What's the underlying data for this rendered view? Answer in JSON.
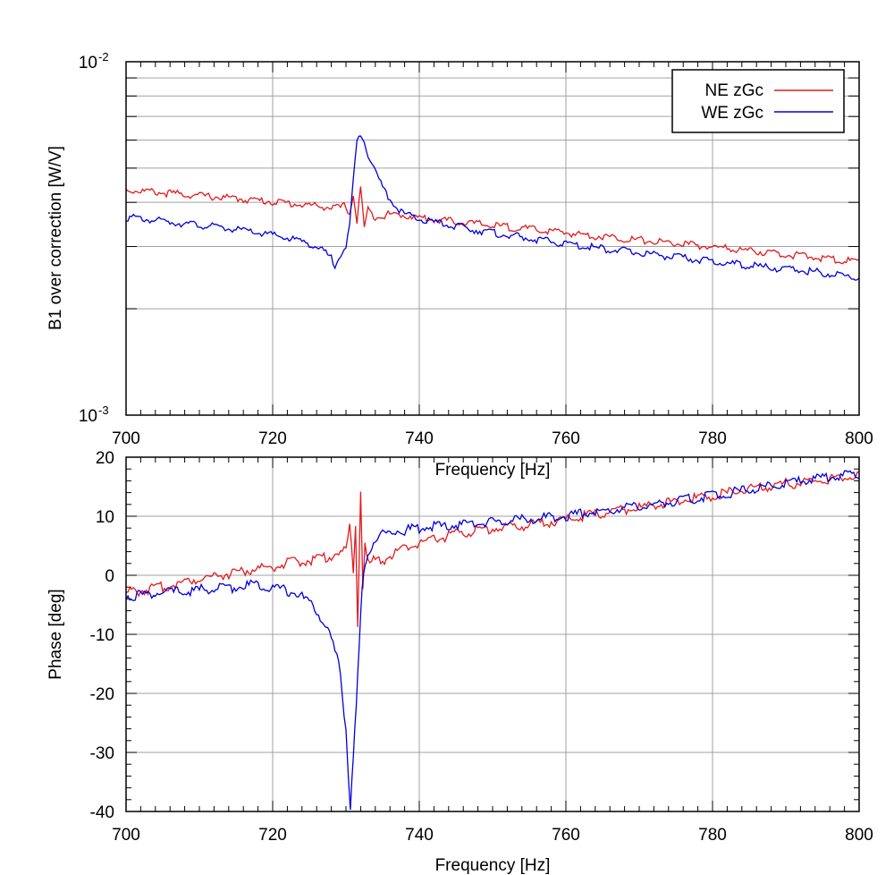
{
  "chart_data": [
    {
      "type": "line",
      "title": "",
      "ylabel": "B1 over correction [W/V]",
      "xlabel": "Frequency [Hz]",
      "xlim": [
        700,
        800
      ],
      "ylim": [
        0.001,
        0.01
      ],
      "yscale": "log",
      "xticks": [
        "700",
        "720",
        "740",
        "760",
        "780",
        "800"
      ],
      "yticks": [
        {
          "base": "10",
          "exp": "-3",
          "value": 0.001
        },
        {
          "base": "10",
          "exp": "-2",
          "value": 0.01
        }
      ],
      "grid": true,
      "legend_position": "top-right",
      "series": [
        {
          "name": "NE zGc",
          "color": "#e41a1c",
          "x": [
            700,
            705,
            710,
            715,
            720,
            724,
            727,
            729,
            730,
            730.5,
            731,
            731.5,
            732,
            732.5,
            733,
            734,
            736,
            738,
            740,
            745,
            750,
            755,
            760,
            765,
            770,
            775,
            780,
            785,
            790,
            795,
            800
          ],
          "y": [
            0.00434,
            0.00426,
            0.00418,
            0.0041,
            0.00402,
            0.00394,
            0.00389,
            0.00385,
            0.00392,
            0.0037,
            0.0042,
            0.0035,
            0.0044,
            0.0034,
            0.0038,
            0.00365,
            0.0037,
            0.00368,
            0.00362,
            0.00353,
            0.00344,
            0.00336,
            0.00328,
            0.0032,
            0.00313,
            0.00306,
            0.00299,
            0.00292,
            0.00285,
            0.00278,
            0.00271
          ]
        },
        {
          "name": "WE zGc",
          "color": "#0000dd",
          "x": [
            700,
            705,
            710,
            715,
            720,
            723,
            725,
            726,
            727,
            728,
            728.5,
            729,
            730,
            730.5,
            731,
            731.5,
            732,
            732.5,
            733,
            734,
            735,
            736,
            737,
            738,
            740,
            745,
            750,
            755,
            760,
            765,
            770,
            775,
            780,
            785,
            790,
            795,
            800
          ],
          "y": [
            0.00363,
            0.00354,
            0.00345,
            0.00335,
            0.00323,
            0.00314,
            0.00306,
            0.00298,
            0.0029,
            0.00278,
            0.00265,
            0.00282,
            0.003,
            0.0034,
            0.0046,
            0.0059,
            0.0063,
            0.006,
            0.0055,
            0.0049,
            0.0044,
            0.0041,
            0.00385,
            0.0037,
            0.00358,
            0.00342,
            0.00328,
            0.00316,
            0.00305,
            0.00296,
            0.00288,
            0.0028,
            0.00272,
            0.00265,
            0.00259,
            0.00253,
            0.00245
          ]
        }
      ]
    },
    {
      "type": "line",
      "title": "",
      "ylabel": "Phase [deg]",
      "xlabel": "Frequency [Hz]",
      "xlim": [
        700,
        800
      ],
      "ylim": [
        -40,
        20
      ],
      "xticks": [
        "700",
        "720",
        "740",
        "760",
        "780",
        "800"
      ],
      "yticks": [
        "-40",
        "-30",
        "-20",
        "-10",
        "0",
        "10",
        "20"
      ],
      "grid": true,
      "series": [
        {
          "name": "NE zGc",
          "color": "#e41a1c",
          "x": [
            700,
            705,
            710,
            715,
            720,
            723,
            726,
            728,
            729,
            730,
            730.5,
            731,
            731.3,
            731.6,
            732,
            732.3,
            732.6,
            733,
            734,
            735,
            737,
            740,
            745,
            750,
            755,
            760,
            765,
            770,
            775,
            780,
            785,
            790,
            795,
            800
          ],
          "y": [
            -3,
            -2,
            -0.5,
            0.5,
            1.5,
            2.2,
            2.8,
            3.3,
            3.8,
            4.0,
            8.5,
            0.5,
            9.0,
            -8.5,
            14.5,
            -2.0,
            6.0,
            2.0,
            2.5,
            2.5,
            4.0,
            5.5,
            7.0,
            8.0,
            8.5,
            9.5,
            10.5,
            11.5,
            12.5,
            13.5,
            14.5,
            15.5,
            16.0,
            17.0
          ]
        },
        {
          "name": "WE zGc",
          "color": "#0000dd",
          "x": [
            700,
            705,
            710,
            715,
            718,
            720,
            723,
            725,
            726,
            727,
            728,
            729,
            729.5,
            730,
            730.3,
            730.6,
            731,
            731.4,
            731.8,
            732.2,
            732.6,
            733,
            734,
            735,
            737,
            740,
            745,
            750,
            755,
            760,
            765,
            770,
            775,
            780,
            785,
            790,
            795,
            800
          ],
          "y": [
            -3.5,
            -3,
            -2.5,
            -2,
            -1.5,
            -2,
            -3,
            -4.5,
            -6,
            -8,
            -11,
            -15,
            -20,
            -26,
            -33,
            -39,
            -30,
            -23,
            -12,
            -3,
            2,
            4,
            6,
            7,
            7.5,
            8,
            8.5,
            9,
            9.5,
            10,
            11,
            11.5,
            12.5,
            13.5,
            14.5,
            15.5,
            16.5,
            17
          ]
        }
      ]
    }
  ]
}
